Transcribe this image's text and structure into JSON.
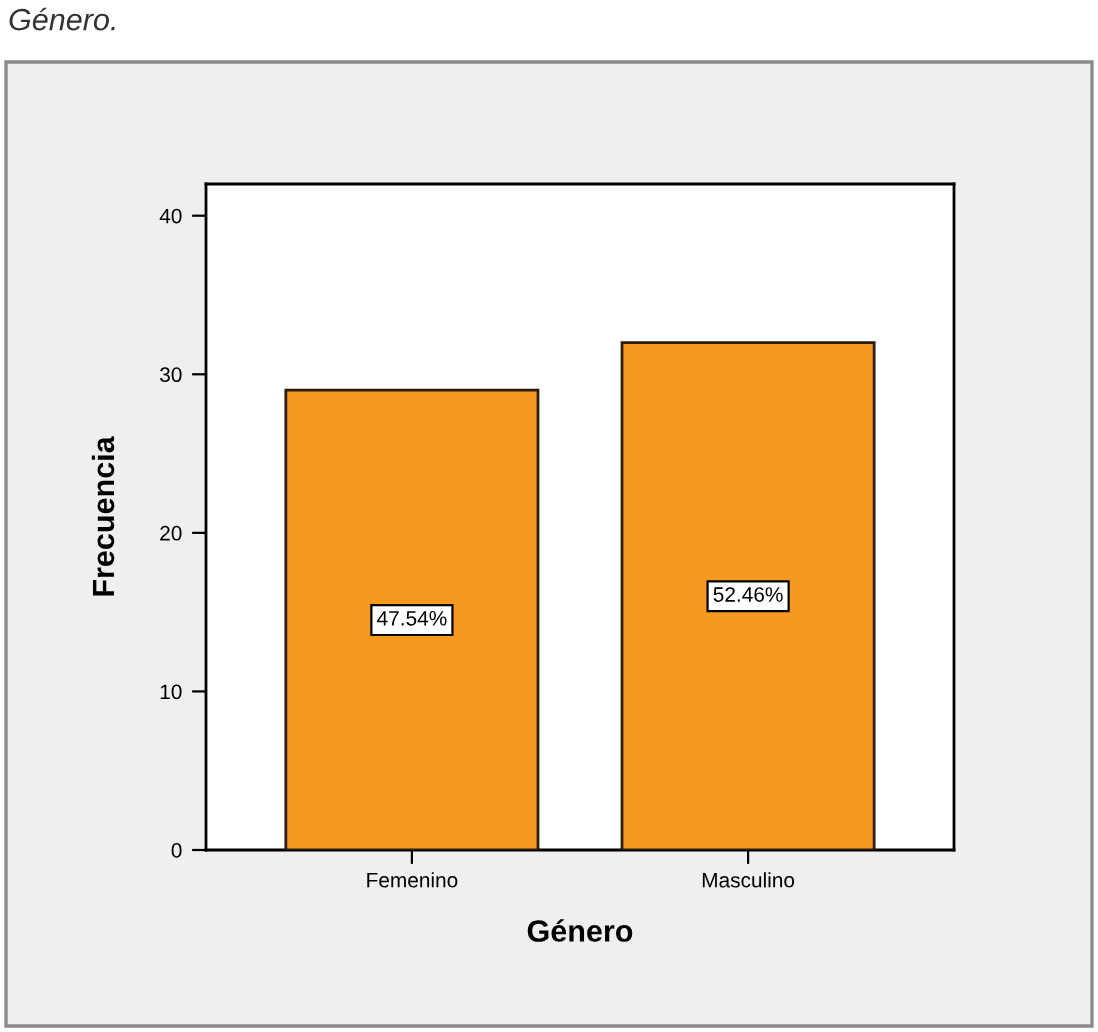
{
  "chart_data": {
    "type": "bar",
    "title": "Género.",
    "xlabel": "Género",
    "ylabel": "Frecuencia",
    "categories": [
      "Femenino",
      "Masculino"
    ],
    "values": [
      29,
      32
    ],
    "color": "#f7991e",
    "annotations": [
      {
        "text": "47.54%",
        "x": "Femenino",
        "y": 14.5
      },
      {
        "text": "52.46%",
        "x": "Masculino",
        "y": 16
      }
    ],
    "ylim": [
      0,
      42
    ],
    "yticks": [
      0,
      10,
      20,
      30,
      40
    ]
  }
}
